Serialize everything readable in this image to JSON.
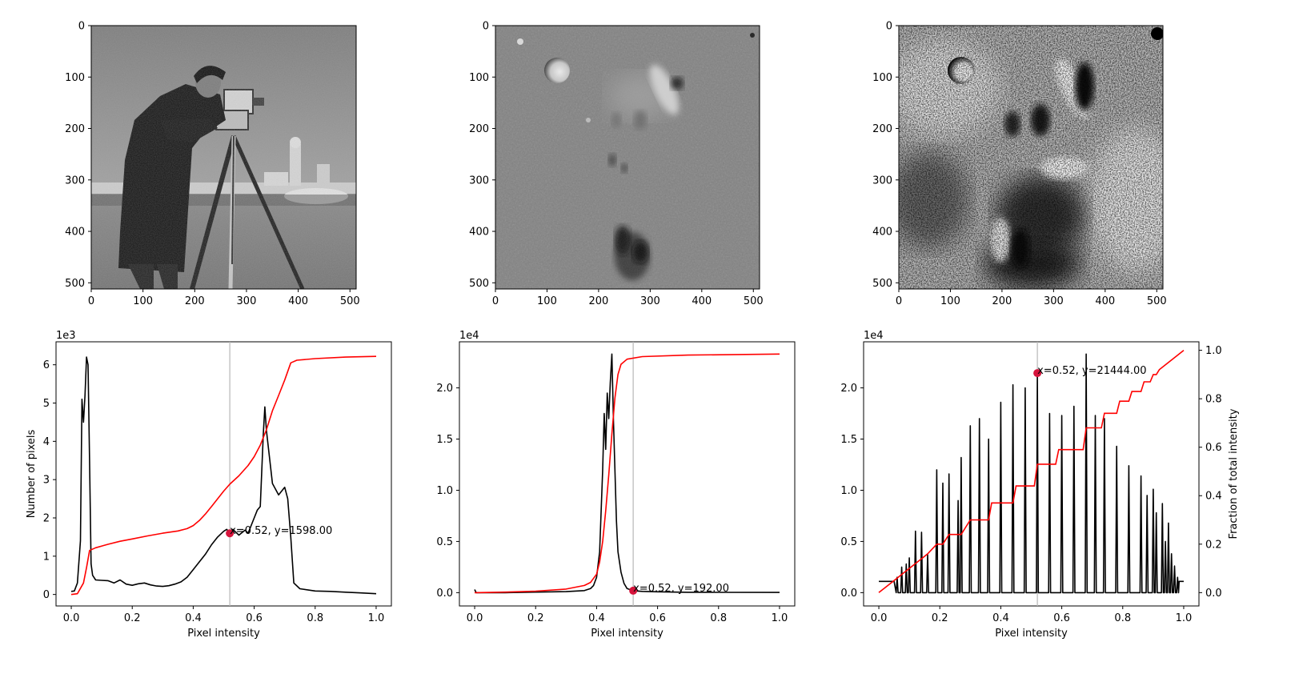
{
  "chart_data": [
    {
      "type": "image",
      "image_name": "cameraman",
      "xlim": [
        0,
        512
      ],
      "ylim": [
        512,
        0
      ],
      "x_ticks": [
        0,
        100,
        200,
        300,
        400,
        500
      ],
      "y_ticks": [
        0,
        100,
        200,
        300,
        400,
        500
      ]
    },
    {
      "type": "image",
      "image_name": "moon-surface-low-contrast",
      "xlim": [
        0,
        512
      ],
      "ylim": [
        512,
        0
      ],
      "x_ticks": [
        0,
        100,
        200,
        300,
        400,
        500
      ],
      "y_ticks": [
        0,
        100,
        200,
        300,
        400,
        500
      ]
    },
    {
      "type": "image",
      "image_name": "moon-surface-equalized",
      "xlim": [
        0,
        512
      ],
      "ylim": [
        512,
        0
      ],
      "x_ticks": [
        0,
        100,
        200,
        300,
        400,
        500
      ],
      "y_ticks": [
        0,
        100,
        200,
        300,
        400,
        500
      ]
    },
    {
      "type": "line",
      "xlabel": "Pixel intensity",
      "ylabel": "Number of pixels",
      "offset_text": "1e3",
      "xlim": [
        -0.05,
        1.05
      ],
      "ylim": [
        -300,
        6600
      ],
      "x_ticks": [
        0.0,
        0.2,
        0.4,
        0.6,
        0.8,
        1.0
      ],
      "x_tick_labels": [
        "0.0",
        "0.2",
        "0.4",
        "0.6",
        "0.8",
        "1.0"
      ],
      "y_ticks": [
        0,
        1000,
        2000,
        3000,
        4000,
        5000,
        6000
      ],
      "y_tick_labels": [
        "0",
        "1",
        "2",
        "3",
        "4",
        "5",
        "6"
      ],
      "vline_x": 0.52,
      "marker": {
        "x": 0.52,
        "y": 1598
      },
      "annotation": "x=0.52, y=1598.00",
      "series": [
        {
          "color": "#000000",
          "points": [
            [
              0.0,
              80
            ],
            [
              0.01,
              90
            ],
            [
              0.02,
              300
            ],
            [
              0.03,
              1400
            ],
            [
              0.035,
              5100
            ],
            [
              0.04,
              4500
            ],
            [
              0.045,
              5200
            ],
            [
              0.05,
              6200
            ],
            [
              0.055,
              6000
            ],
            [
              0.06,
              3500
            ],
            [
              0.065,
              800
            ],
            [
              0.07,
              500
            ],
            [
              0.08,
              380
            ],
            [
              0.1,
              370
            ],
            [
              0.12,
              360
            ],
            [
              0.14,
              300
            ],
            [
              0.16,
              380
            ],
            [
              0.18,
              270
            ],
            [
              0.2,
              240
            ],
            [
              0.22,
              280
            ],
            [
              0.24,
              300
            ],
            [
              0.26,
              250
            ],
            [
              0.28,
              220
            ],
            [
              0.3,
              210
            ],
            [
              0.32,
              230
            ],
            [
              0.34,
              270
            ],
            [
              0.36,
              330
            ],
            [
              0.38,
              450
            ],
            [
              0.4,
              650
            ],
            [
              0.42,
              850
            ],
            [
              0.44,
              1050
            ],
            [
              0.46,
              1300
            ],
            [
              0.48,
              1500
            ],
            [
              0.5,
              1650
            ],
            [
              0.51,
              1700
            ],
            [
              0.52,
              1598
            ],
            [
              0.53,
              1700
            ],
            [
              0.55,
              1550
            ],
            [
              0.57,
              1680
            ],
            [
              0.58,
              1600
            ],
            [
              0.6,
              2000
            ],
            [
              0.61,
              2200
            ],
            [
              0.62,
              2300
            ],
            [
              0.63,
              4200
            ],
            [
              0.635,
              4900
            ],
            [
              0.64,
              4300
            ],
            [
              0.65,
              3600
            ],
            [
              0.66,
              2900
            ],
            [
              0.68,
              2600
            ],
            [
              0.69,
              2700
            ],
            [
              0.7,
              2800
            ],
            [
              0.71,
              2500
            ],
            [
              0.72,
              1500
            ],
            [
              0.73,
              300
            ],
            [
              0.75,
              150
            ],
            [
              0.8,
              90
            ],
            [
              0.85,
              80
            ],
            [
              0.9,
              60
            ],
            [
              0.95,
              40
            ],
            [
              1.0,
              20
            ]
          ]
        },
        {
          "color": "#ff0000",
          "points": [
            [
              0.0,
              0
            ],
            [
              0.02,
              20
            ],
            [
              0.04,
              300
            ],
            [
              0.05,
              700
            ],
            [
              0.06,
              1150
            ],
            [
              0.08,
              1220
            ],
            [
              0.12,
              1310
            ],
            [
              0.16,
              1390
            ],
            [
              0.2,
              1450
            ],
            [
              0.25,
              1530
            ],
            [
              0.3,
              1600
            ],
            [
              0.35,
              1660
            ],
            [
              0.38,
              1720
            ],
            [
              0.4,
              1800
            ],
            [
              0.42,
              1930
            ],
            [
              0.44,
              2100
            ],
            [
              0.46,
              2300
            ],
            [
              0.48,
              2500
            ],
            [
              0.5,
              2700
            ],
            [
              0.52,
              2880
            ],
            [
              0.55,
              3100
            ],
            [
              0.58,
              3370
            ],
            [
              0.6,
              3600
            ],
            [
              0.62,
              3900
            ],
            [
              0.64,
              4300
            ],
            [
              0.66,
              4800
            ],
            [
              0.68,
              5200
            ],
            [
              0.7,
              5600
            ],
            [
              0.72,
              6050
            ],
            [
              0.74,
              6120
            ],
            [
              0.8,
              6160
            ],
            [
              0.9,
              6200
            ],
            [
              1.0,
              6220
            ]
          ]
        }
      ]
    },
    {
      "type": "line",
      "xlabel": "Pixel intensity",
      "ylabel": "",
      "offset_text": "1e4",
      "xlim": [
        -0.05,
        1.05
      ],
      "ylim": [
        -1300,
        24500
      ],
      "x_ticks": [
        0.0,
        0.2,
        0.4,
        0.6,
        0.8,
        1.0
      ],
      "x_tick_labels": [
        "0.0",
        "0.2",
        "0.4",
        "0.6",
        "0.8",
        "1.0"
      ],
      "y_ticks": [
        0,
        5000,
        10000,
        15000,
        20000
      ],
      "y_tick_labels": [
        "0.0",
        "0.5",
        "1.0",
        "1.5",
        "2.0"
      ],
      "vline_x": 0.52,
      "marker": {
        "x": 0.52,
        "y": 192
      },
      "annotation": "x=0.52, y=192.00",
      "series": [
        {
          "color": "#000000",
          "points": [
            [
              0.0,
              300
            ],
            [
              0.005,
              0
            ],
            [
              0.1,
              0
            ],
            [
              0.2,
              50
            ],
            [
              0.3,
              100
            ],
            [
              0.36,
              200
            ],
            [
              0.38,
              400
            ],
            [
              0.39,
              700
            ],
            [
              0.4,
              1500
            ],
            [
              0.41,
              4000
            ],
            [
              0.415,
              8000
            ],
            [
              0.42,
              12000
            ],
            [
              0.425,
              17500
            ],
            [
              0.43,
              14000
            ],
            [
              0.435,
              19500
            ],
            [
              0.44,
              17000
            ],
            [
              0.445,
              20500
            ],
            [
              0.45,
              23300
            ],
            [
              0.455,
              17000
            ],
            [
              0.46,
              12000
            ],
            [
              0.465,
              7000
            ],
            [
              0.47,
              4000
            ],
            [
              0.48,
              2000
            ],
            [
              0.49,
              900
            ],
            [
              0.5,
              400
            ],
            [
              0.52,
              192
            ],
            [
              0.55,
              120
            ],
            [
              0.6,
              80
            ],
            [
              0.7,
              40
            ],
            [
              0.8,
              30
            ],
            [
              1.0,
              20
            ]
          ]
        },
        {
          "color": "#ff0000",
          "points": [
            [
              0.0,
              0
            ],
            [
              0.1,
              50
            ],
            [
              0.2,
              150
            ],
            [
              0.3,
              350
            ],
            [
              0.36,
              700
            ],
            [
              0.38,
              1000
            ],
            [
              0.4,
              1800
            ],
            [
              0.41,
              3000
            ],
            [
              0.42,
              5000
            ],
            [
              0.43,
              8000
            ],
            [
              0.44,
              11500
            ],
            [
              0.45,
              15500
            ],
            [
              0.46,
              19000
            ],
            [
              0.47,
              21300
            ],
            [
              0.48,
              22300
            ],
            [
              0.5,
              22800
            ],
            [
              0.55,
              23050
            ],
            [
              0.7,
              23200
            ],
            [
              1.0,
              23300
            ]
          ]
        }
      ]
    },
    {
      "type": "line",
      "xlabel": "Pixel intensity",
      "ylabel": "",
      "offset_text": "1e4",
      "y2label": "Fraction of total intensity",
      "xlim": [
        -0.05,
        1.05
      ],
      "ylim": [
        -1300,
        24500
      ],
      "y2lim": [
        -0.055,
        1.035
      ],
      "x_ticks": [
        0.0,
        0.2,
        0.4,
        0.6,
        0.8,
        1.0
      ],
      "x_tick_labels": [
        "0.0",
        "0.2",
        "0.4",
        "0.6",
        "0.8",
        "1.0"
      ],
      "y_ticks": [
        0,
        5000,
        10000,
        15000,
        20000
      ],
      "y_tick_labels": [
        "0.0",
        "0.5",
        "1.0",
        "1.5",
        "2.0"
      ],
      "y2_ticks": [
        0.0,
        0.2,
        0.4,
        0.6,
        0.8,
        1.0
      ],
      "y2_tick_labels": [
        "0.0",
        "0.2",
        "0.4",
        "0.6",
        "0.8",
        "1.0"
      ],
      "vline_x": 0.52,
      "marker": {
        "x": 0.52,
        "y": 21444
      },
      "annotation": "x=0.52, y=21444.00",
      "spike_baseline": 1100,
      "spikes": [
        [
          0.06,
          1500
        ],
        [
          0.075,
          2500
        ],
        [
          0.09,
          2800
        ],
        [
          0.1,
          3400
        ],
        [
          0.12,
          6000
        ],
        [
          0.14,
          5900
        ],
        [
          0.16,
          3700
        ],
        [
          0.19,
          12000
        ],
        [
          0.21,
          10700
        ],
        [
          0.23,
          11600
        ],
        [
          0.26,
          9000
        ],
        [
          0.27,
          13200
        ],
        [
          0.3,
          16300
        ],
        [
          0.33,
          17000
        ],
        [
          0.36,
          15000
        ],
        [
          0.4,
          18600
        ],
        [
          0.44,
          20300
        ],
        [
          0.48,
          20000
        ],
        [
          0.52,
          21444
        ],
        [
          0.56,
          17500
        ],
        [
          0.6,
          17300
        ],
        [
          0.64,
          18200
        ],
        [
          0.68,
          23300
        ],
        [
          0.71,
          17300
        ],
        [
          0.74,
          17000
        ],
        [
          0.78,
          14300
        ],
        [
          0.82,
          12400
        ],
        [
          0.86,
          11400
        ],
        [
          0.88,
          9500
        ],
        [
          0.9,
          10100
        ],
        [
          0.91,
          7800
        ],
        [
          0.93,
          8700
        ],
        [
          0.94,
          5000
        ],
        [
          0.95,
          6800
        ],
        [
          0.96,
          3800
        ],
        [
          0.97,
          2600
        ],
        [
          0.98,
          1500
        ]
      ],
      "cdf": [
        [
          0.0,
          0.0
        ],
        [
          0.02,
          0.02
        ],
        [
          0.04,
          0.04
        ],
        [
          0.06,
          0.06
        ],
        [
          0.08,
          0.08
        ],
        [
          0.1,
          0.1
        ],
        [
          0.12,
          0.12
        ],
        [
          0.14,
          0.14
        ],
        [
          0.16,
          0.16
        ],
        [
          0.19,
          0.2
        ],
        [
          0.21,
          0.2
        ],
        [
          0.23,
          0.24
        ],
        [
          0.27,
          0.24
        ],
        [
          0.3,
          0.3
        ],
        [
          0.36,
          0.3
        ],
        [
          0.37,
          0.37
        ],
        [
          0.44,
          0.37
        ],
        [
          0.45,
          0.44
        ],
        [
          0.51,
          0.44
        ],
        [
          0.52,
          0.53
        ],
        [
          0.58,
          0.53
        ],
        [
          0.59,
          0.59
        ],
        [
          0.67,
          0.59
        ],
        [
          0.68,
          0.68
        ],
        [
          0.73,
          0.68
        ],
        [
          0.74,
          0.74
        ],
        [
          0.78,
          0.74
        ],
        [
          0.79,
          0.79
        ],
        [
          0.82,
          0.79
        ],
        [
          0.83,
          0.83
        ],
        [
          0.86,
          0.83
        ],
        [
          0.87,
          0.87
        ],
        [
          0.89,
          0.87
        ],
        [
          0.9,
          0.9
        ],
        [
          0.91,
          0.9
        ],
        [
          0.92,
          0.92
        ],
        [
          0.93,
          0.93
        ],
        [
          0.94,
          0.94
        ],
        [
          0.95,
          0.95
        ],
        [
          0.96,
          0.96
        ],
        [
          0.97,
          0.97
        ],
        [
          0.98,
          0.98
        ],
        [
          1.0,
          1.0
        ]
      ]
    }
  ]
}
